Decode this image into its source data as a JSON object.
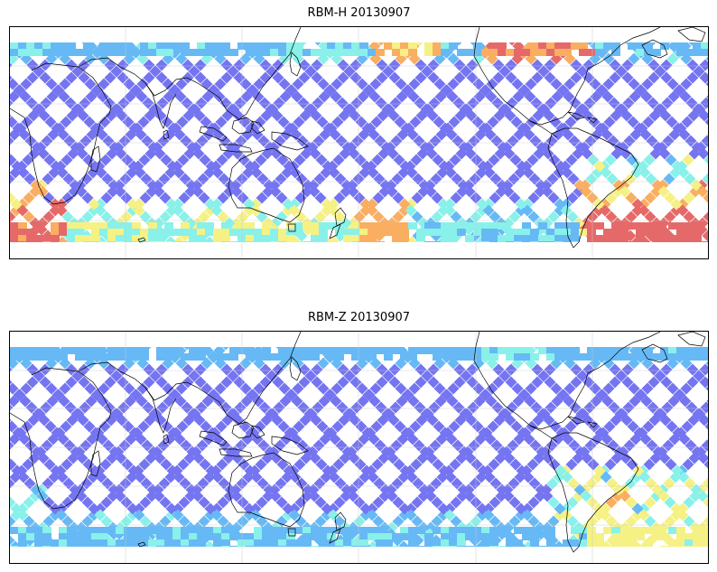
{
  "panels": [
    {
      "title": "RBM-H 20130907",
      "variant": "H",
      "colors": {
        "low": "#6a6af0",
        "mid": "#5ab4f5",
        "cyan": "#7ff0e8",
        "yellow": "#f5f07a",
        "orange": "#f9a854",
        "red": "#e45d5d"
      }
    },
    {
      "title": "RBM-Z 20130907",
      "variant": "Z",
      "colors": {
        "low": "#6a6af0",
        "mid": "#5ab4f5",
        "cyan": "#7ff0e8",
        "yellow": "#f5f07a",
        "orange": "#f9a854",
        "red": "#e45d5d"
      }
    }
  ]
}
